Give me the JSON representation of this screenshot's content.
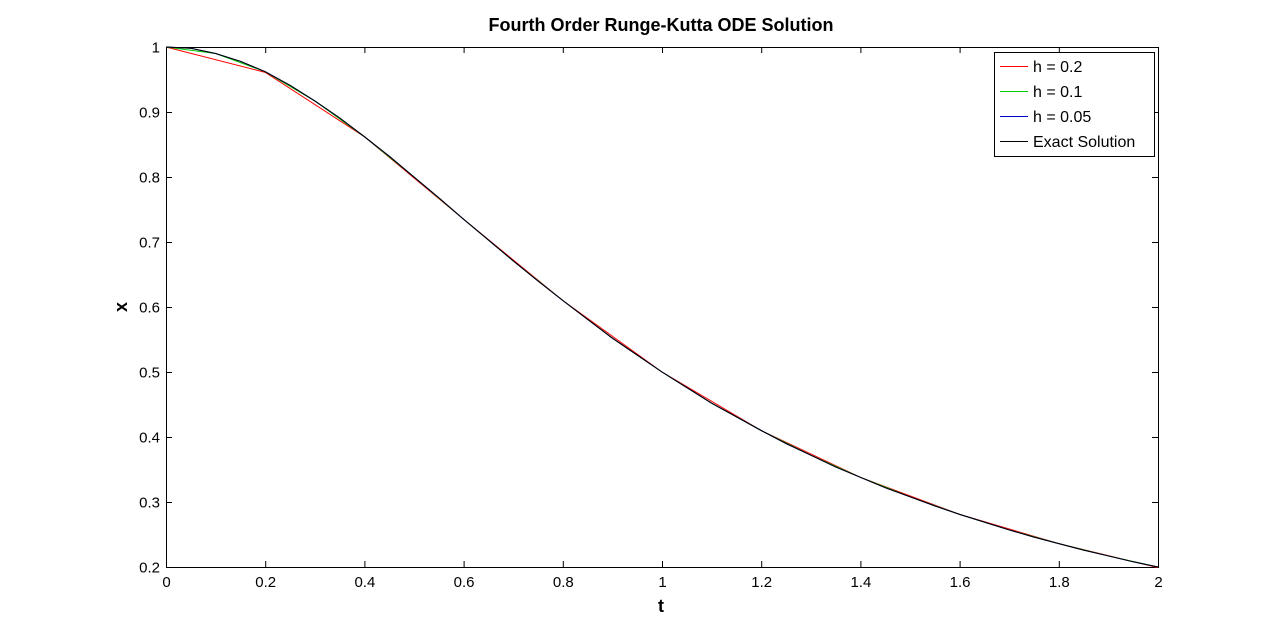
{
  "chart_data": {
    "type": "line",
    "title": "Fourth Order Runge-Kutta ODE Solution",
    "xlabel": "t",
    "ylabel": "x",
    "xlim": [
      0,
      2
    ],
    "ylim": [
      0.2,
      1
    ],
    "xticks": [
      "0",
      "0.2",
      "0.4",
      "0.6",
      "0.8",
      "1",
      "1.2",
      "1.4",
      "1.6",
      "1.8",
      "2"
    ],
    "yticks": [
      "0.2",
      "0.3",
      "0.4",
      "0.5",
      "0.6",
      "0.7",
      "0.8",
      "0.9",
      "1"
    ],
    "grid": false,
    "legend_position": "top-right",
    "series": [
      {
        "name": "h = 0.2",
        "color": "#ff0000",
        "x": [
          0,
          0.2,
          0.4,
          0.6,
          0.8,
          1.0,
          1.2,
          1.4,
          1.6,
          1.8,
          2.0
        ],
        "y": [
          1.0,
          0.961,
          0.862,
          0.735,
          0.61,
          0.5,
          0.41,
          0.338,
          0.281,
          0.236,
          0.199
        ]
      },
      {
        "name": "h = 0.1",
        "color": "#00cc00",
        "x": [
          0,
          0.1,
          0.2,
          0.3,
          0.4,
          0.5,
          0.6,
          0.7,
          0.8,
          0.9,
          1.0,
          1.1,
          1.2,
          1.3,
          1.4,
          1.5,
          1.6,
          1.7,
          1.8,
          1.9,
          2.0
        ],
        "y": [
          1.0,
          0.99,
          0.962,
          0.917,
          0.862,
          0.8,
          0.735,
          0.671,
          0.61,
          0.552,
          0.5,
          0.452,
          0.41,
          0.372,
          0.338,
          0.308,
          0.281,
          0.257,
          0.236,
          0.217,
          0.2
        ]
      },
      {
        "name": "h = 0.05",
        "color": "#0000cc",
        "x": [
          0,
          0.05,
          0.1,
          0.15,
          0.2,
          0.25,
          0.3,
          0.35,
          0.4,
          0.45,
          0.5,
          0.55,
          0.6,
          0.65,
          0.7,
          0.75,
          0.8,
          0.85,
          0.9,
          0.95,
          1.0,
          1.05,
          1.1,
          1.15,
          1.2,
          1.25,
          1.3,
          1.35,
          1.4,
          1.45,
          1.5,
          1.55,
          1.6,
          1.65,
          1.7,
          1.75,
          1.8,
          1.85,
          1.9,
          1.95,
          2.0
        ],
        "y": [
          1.0,
          0.998,
          0.99,
          0.978,
          0.962,
          0.941,
          0.917,
          0.891,
          0.862,
          0.832,
          0.8,
          0.768,
          0.735,
          0.703,
          0.671,
          0.64,
          0.61,
          0.581,
          0.552,
          0.526,
          0.5,
          0.476,
          0.452,
          0.431,
          0.41,
          0.39,
          0.372,
          0.354,
          0.338,
          0.322,
          0.308,
          0.294,
          0.281,
          0.269,
          0.257,
          0.246,
          0.236,
          0.226,
          0.217,
          0.208,
          0.2
        ]
      },
      {
        "name": "Exact Solution",
        "color": "#000000",
        "x": [
          0,
          0.05,
          0.1,
          0.15,
          0.2,
          0.25,
          0.3,
          0.35,
          0.4,
          0.45,
          0.5,
          0.55,
          0.6,
          0.65,
          0.7,
          0.75,
          0.8,
          0.85,
          0.9,
          0.95,
          1.0,
          1.05,
          1.1,
          1.15,
          1.2,
          1.25,
          1.3,
          1.35,
          1.4,
          1.45,
          1.5,
          1.55,
          1.6,
          1.65,
          1.7,
          1.75,
          1.8,
          1.85,
          1.9,
          1.95,
          2.0
        ],
        "y": [
          1.0,
          0.998,
          0.99,
          0.978,
          0.962,
          0.941,
          0.917,
          0.891,
          0.862,
          0.832,
          0.8,
          0.768,
          0.735,
          0.703,
          0.671,
          0.64,
          0.61,
          0.581,
          0.552,
          0.526,
          0.5,
          0.476,
          0.452,
          0.431,
          0.41,
          0.39,
          0.372,
          0.354,
          0.338,
          0.322,
          0.308,
          0.294,
          0.281,
          0.269,
          0.257,
          0.246,
          0.236,
          0.226,
          0.217,
          0.208,
          0.2
        ]
      }
    ]
  }
}
